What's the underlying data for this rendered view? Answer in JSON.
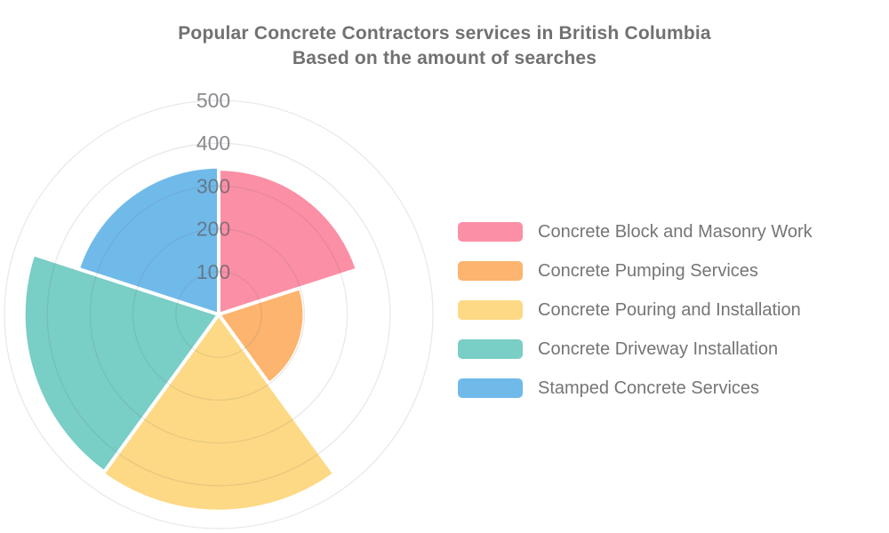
{
  "title": {
    "line1": "Popular Concrete Contractors services in British Columbia",
    "line2": "Based on the amount of searches"
  },
  "chart_data": {
    "type": "polar-area-rose",
    "title": "Popular Concrete Contractors services in British Columbia",
    "subtitle": "Based on the amount of searches",
    "categories": [
      "Concrete Block and Masonry Work",
      "Concrete Pumping Services",
      "Concrete Pouring and Installation",
      "Concrete Driveway Installation",
      "Stamped Concrete Services"
    ],
    "values": [
      340,
      200,
      460,
      455,
      345
    ],
    "colors": [
      "#FB8FA6",
      "#FCB46E",
      "#FDD985",
      "#79CEC6",
      "#70BAEA"
    ],
    "radial_axis": {
      "ticks": [
        100,
        200,
        300,
        400,
        500
      ],
      "max": 500,
      "tick_label_color": "#8f8f8f"
    },
    "angular_axis": {
      "start_deg": 0,
      "clockwise": true,
      "equal_angles": true,
      "sector_count": 5
    },
    "grid": true,
    "grid_ring_color": "#e4e4e4",
    "sector_border_color": "#ffffff",
    "legend_position": "right",
    "title_color": "#717171",
    "legend_text_color": "#757575",
    "background_color": "#ffffff"
  }
}
